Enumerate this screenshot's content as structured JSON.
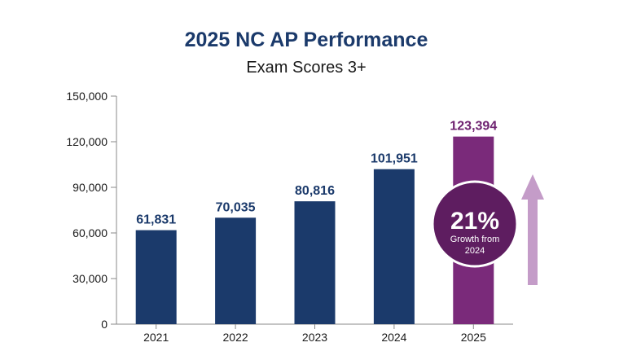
{
  "chart_data": {
    "type": "bar",
    "title": "2025 NC AP Performance",
    "subtitle": "Exam Scores 3+",
    "categories": [
      "2021",
      "2022",
      "2023",
      "2024",
      "2025"
    ],
    "values": [
      61831,
      70035,
      80816,
      101951,
      123394
    ],
    "data_labels": [
      "61,831",
      "70,035",
      "80,816",
      "101,951",
      "123,394"
    ],
    "yticks": [
      "0",
      "30,000",
      "60,000",
      "90,000",
      "120,000",
      "150,000"
    ],
    "ytick_values": [
      0,
      30000,
      60000,
      90000,
      120000,
      150000
    ],
    "ylim": [
      0,
      150000
    ],
    "grid": false,
    "colors": {
      "default_bar": "#1b3a6b",
      "highlight_bar": "#7a2a7a",
      "highlight_label": "#6e2270",
      "badge": "#5e1d60",
      "arrow": "#c49cc8",
      "axis": "#888888"
    },
    "highlight_index": 4,
    "annotation": {
      "percent": "21%",
      "line1": "Growth from",
      "line2": "2024"
    }
  }
}
